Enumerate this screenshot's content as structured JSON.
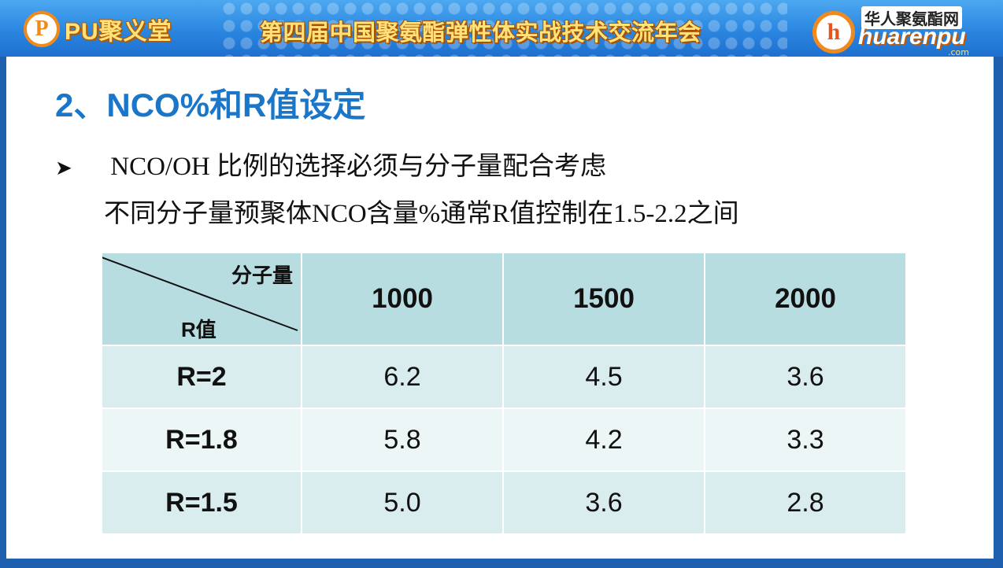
{
  "banner": {
    "left_logo_mark": "P",
    "left_logo_text": "PU聚义堂",
    "title": "第四届中国聚氨酯弹性体实战技术交流年会",
    "right_logo_mark": "h",
    "right_logo_cn": "华人聚氨酯网",
    "right_logo_en": "huarenpu",
    "right_logo_domain": ".com"
  },
  "slide": {
    "heading": "2、NCO%和R值设定",
    "bullet_icon": "arrow-bullet-icon",
    "bullet_text": " NCO/OH 比例的选择必须与分子量配合考虑",
    "line2": "不同分子量预聚体NCO含量%通常R值控制在1.5-2.2之间"
  },
  "table": {
    "corner_top": "分子量",
    "corner_bottom": "R值",
    "columns": [
      "1000",
      "1500",
      "2000"
    ],
    "rows": [
      {
        "label": "R=2",
        "values": [
          "6.2",
          "4.5",
          "3.6"
        ]
      },
      {
        "label": "R=1.8",
        "values": [
          "5.8",
          "4.2",
          "3.3"
        ]
      },
      {
        "label": "R=1.5",
        "values": [
          "5.0",
          "3.6",
          "2.8"
        ]
      }
    ]
  },
  "colors": {
    "banner": "#2a86e0",
    "heading": "#1a76c9",
    "table_header": "#b7dde0",
    "table_row_odd": "#d9ecee",
    "table_row_even": "#edf6f6"
  }
}
